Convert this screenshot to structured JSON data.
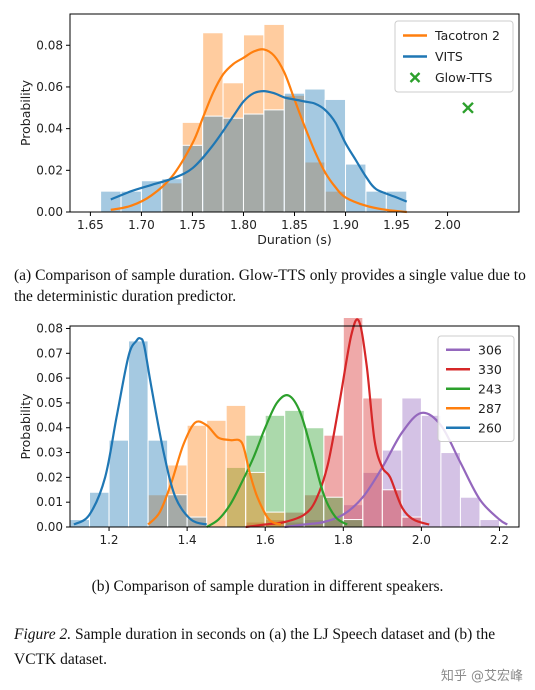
{
  "chart_data": [
    {
      "type": "histogram+line",
      "xlabel": "Duration (s)",
      "ylabel": "Probability",
      "xlim": [
        1.63,
        2.07
      ],
      "ylim": [
        0,
        0.095
      ],
      "xticks": [
        "1.65",
        "1.70",
        "1.75",
        "1.80",
        "1.85",
        "1.90",
        "1.95",
        "2.00"
      ],
      "yticks": [
        "0.00",
        "0.02",
        "0.04",
        "0.06",
        "0.08"
      ],
      "legend_position": "top-right",
      "bin_width": 0.02,
      "series": [
        {
          "name": "Tacotron 2",
          "color": "#ff7f0e",
          "bins": [
            [
              1.73,
              0.014
            ],
            [
              1.75,
              0.043
            ],
            [
              1.77,
              0.086
            ],
            [
              1.79,
              0.062
            ],
            [
              1.81,
              0.085
            ],
            [
              1.83,
              0.09
            ],
            [
              1.85,
              0.056
            ],
            [
              1.87,
              0.024
            ],
            [
              1.89,
              0.01
            ]
          ],
          "curve_x": [
            1.67,
            1.69,
            1.71,
            1.73,
            1.75,
            1.76,
            1.77,
            1.78,
            1.79,
            1.8,
            1.81,
            1.82,
            1.83,
            1.84,
            1.85,
            1.86,
            1.87,
            1.88,
            1.89,
            1.9,
            1.92,
            1.94,
            1.96
          ],
          "curve_y": [
            0.001,
            0.003,
            0.008,
            0.017,
            0.033,
            0.045,
            0.057,
            0.066,
            0.071,
            0.074,
            0.077,
            0.078,
            0.075,
            0.067,
            0.054,
            0.041,
            0.029,
            0.019,
            0.012,
            0.007,
            0.003,
            0.001,
            0.0
          ]
        },
        {
          "name": "VITS",
          "color": "#1f77b4",
          "bins": [
            [
              1.67,
              0.01
            ],
            [
              1.69,
              0.01
            ],
            [
              1.71,
              0.015
            ],
            [
              1.73,
              0.016
            ],
            [
              1.75,
              0.032
            ],
            [
              1.77,
              0.046
            ],
            [
              1.79,
              0.045
            ],
            [
              1.81,
              0.047
            ],
            [
              1.83,
              0.049
            ],
            [
              1.85,
              0.057
            ],
            [
              1.87,
              0.059
            ],
            [
              1.89,
              0.054
            ],
            [
              1.91,
              0.023
            ],
            [
              1.93,
              0.01
            ],
            [
              1.95,
              0.01
            ]
          ],
          "curve_x": [
            1.67,
            1.69,
            1.71,
            1.73,
            1.75,
            1.77,
            1.79,
            1.8,
            1.81,
            1.82,
            1.83,
            1.84,
            1.85,
            1.86,
            1.87,
            1.88,
            1.89,
            1.9,
            1.91,
            1.92,
            1.93,
            1.95,
            1.96
          ],
          "curve_y": [
            0.006,
            0.01,
            0.013,
            0.016,
            0.021,
            0.032,
            0.046,
            0.053,
            0.057,
            0.058,
            0.057,
            0.055,
            0.054,
            0.053,
            0.052,
            0.049,
            0.043,
            0.033,
            0.025,
            0.017,
            0.011,
            0.007,
            0.005
          ]
        },
        {
          "name": "Glow-TTS",
          "color": "#2ca02c",
          "points": [
            [
              2.02,
              0.05
            ]
          ]
        }
      ]
    },
    {
      "type": "histogram+line",
      "xlabel": "",
      "ylabel": "Probability",
      "xlim": [
        1.1,
        2.25
      ],
      "ylim": [
        0,
        0.081
      ],
      "xticks": [
        "1.2",
        "1.4",
        "1.6",
        "1.8",
        "2.0",
        "2.2"
      ],
      "yticks": [
        "0.00",
        "0.01",
        "0.02",
        "0.03",
        "0.04",
        "0.05",
        "0.06",
        "0.07",
        "0.08"
      ],
      "legend_position": "top-right",
      "bin_width": 0.05,
      "series": [
        {
          "name": "306",
          "color": "#9467bd",
          "bins": [
            [
              1.675,
              0.002
            ],
            [
              1.725,
              0.003
            ],
            [
              1.775,
              0.003
            ],
            [
              1.825,
              0.009
            ],
            [
              1.875,
              0.022
            ],
            [
              1.925,
              0.031
            ],
            [
              1.975,
              0.052
            ],
            [
              2.025,
              0.045
            ],
            [
              2.075,
              0.03
            ],
            [
              2.125,
              0.012
            ],
            [
              2.175,
              0.003
            ]
          ],
          "curve_x": [
            1.65,
            1.7,
            1.75,
            1.8,
            1.85,
            1.9,
            1.95,
            2.0,
            2.05,
            2.1,
            2.15,
            2.2,
            2.22
          ],
          "curve_y": [
            0.0,
            0.001,
            0.002,
            0.005,
            0.012,
            0.024,
            0.038,
            0.046,
            0.041,
            0.026,
            0.011,
            0.003,
            0.001
          ]
        },
        {
          "name": "330",
          "color": "#d62728",
          "bins": [
            [
              1.575,
              0.002
            ],
            [
              1.625,
              0.003
            ],
            [
              1.675,
              0.006
            ],
            [
              1.725,
              0.013
            ],
            [
              1.775,
              0.037
            ],
            [
              1.825,
              0.085
            ],
            [
              1.875,
              0.052
            ],
            [
              1.925,
              0.015
            ],
            [
              1.975,
              0.004
            ]
          ],
          "curve_x": [
            1.55,
            1.6,
            1.65,
            1.7,
            1.73,
            1.76,
            1.79,
            1.82,
            1.84,
            1.86,
            1.88,
            1.9,
            1.92,
            1.95,
            1.98,
            2.02
          ],
          "curve_y": [
            0.0,
            0.001,
            0.002,
            0.005,
            0.011,
            0.025,
            0.05,
            0.077,
            0.083,
            0.065,
            0.035,
            0.024,
            0.02,
            0.008,
            0.003,
            0.001
          ]
        },
        {
          "name": "243",
          "color": "#2ca02c",
          "bins": [
            [
              1.525,
              0.024
            ],
            [
              1.575,
              0.037
            ],
            [
              1.625,
              0.045
            ],
            [
              1.675,
              0.047
            ],
            [
              1.725,
              0.04
            ],
            [
              1.775,
              0.012
            ],
            [
              1.825,
              0.003
            ]
          ],
          "curve_x": [
            1.45,
            1.48,
            1.51,
            1.54,
            1.57,
            1.6,
            1.63,
            1.66,
            1.69,
            1.72,
            1.75,
            1.78,
            1.81
          ],
          "curve_y": [
            0.0,
            0.003,
            0.009,
            0.018,
            0.028,
            0.04,
            0.05,
            0.053,
            0.046,
            0.03,
            0.013,
            0.004,
            0.001
          ]
        },
        {
          "name": "287",
          "color": "#ff7f0e",
          "bins": [
            [
              1.325,
              0.013
            ],
            [
              1.375,
              0.025
            ],
            [
              1.425,
              0.041
            ],
            [
              1.475,
              0.043
            ],
            [
              1.525,
              0.049
            ],
            [
              1.575,
              0.022
            ],
            [
              1.625,
              0.006
            ]
          ],
          "curve_x": [
            1.3,
            1.33,
            1.36,
            1.39,
            1.42,
            1.45,
            1.48,
            1.51,
            1.54,
            1.56,
            1.58,
            1.61,
            1.64
          ],
          "curve_y": [
            0.001,
            0.006,
            0.018,
            0.033,
            0.042,
            0.041,
            0.036,
            0.035,
            0.034,
            0.022,
            0.012,
            0.003,
            0.001
          ]
        },
        {
          "name": "260",
          "color": "#1f77b4",
          "bins": [
            [
              1.125,
              0.003
            ],
            [
              1.175,
              0.014
            ],
            [
              1.225,
              0.035
            ],
            [
              1.275,
              0.075
            ],
            [
              1.325,
              0.035
            ],
            [
              1.375,
              0.013
            ],
            [
              1.425,
              0.004
            ]
          ],
          "curve_x": [
            1.11,
            1.15,
            1.19,
            1.22,
            1.25,
            1.27,
            1.28,
            1.29,
            1.31,
            1.34,
            1.37,
            1.41,
            1.45
          ],
          "curve_y": [
            0.001,
            0.005,
            0.02,
            0.045,
            0.069,
            0.075,
            0.076,
            0.073,
            0.055,
            0.03,
            0.012,
            0.003,
            0.001
          ]
        }
      ]
    }
  ],
  "captions": {
    "a": "(a) Comparison of sample duration.  Glow-TTS only provides a single value due to the deterministic duration predictor.",
    "b": "(b) Comparison of sample duration in different speakers.",
    "figure_label": "Figure 2.",
    "figure_text": " Sample duration in seconds on (a) the LJ Speech dataset and (b) the VCTK dataset."
  },
  "watermark": "知乎 @艾宏峰"
}
